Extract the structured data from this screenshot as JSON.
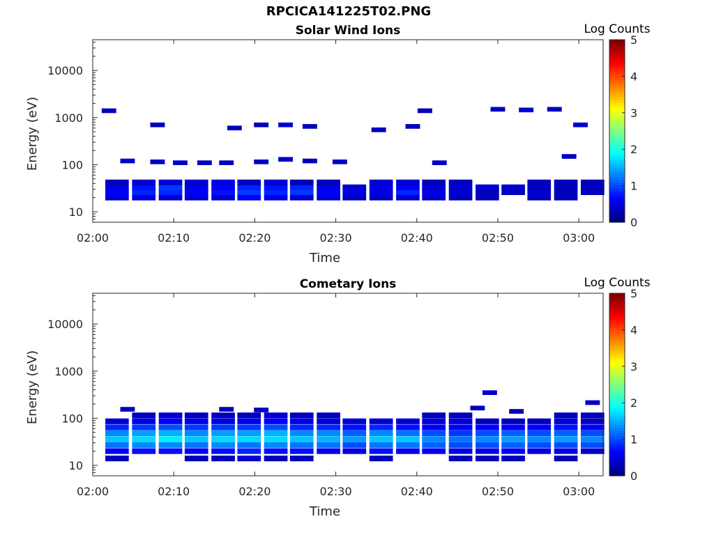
{
  "figure": {
    "title": "RPCICA141225T02.PNG"
  },
  "colorbar": {
    "label": "Log Counts",
    "ticks": [
      "0",
      "1",
      "2",
      "3",
      "4",
      "5"
    ],
    "range": [
      0,
      5
    ],
    "colormap": "jet"
  },
  "chart_data": [
    {
      "type": "heatmap",
      "title": "Solar Wind Ions",
      "xlabel": "Time",
      "ylabel": "Energy (eV)",
      "x_ticks": [
        "02:00",
        "02:10",
        "02:20",
        "02:30",
        "02:40",
        "02:50",
        "03:00"
      ],
      "y_ticks": [
        "10",
        "100",
        "1000",
        "10000"
      ],
      "y_scale": "log",
      "x_range_minutes": [
        0,
        63
      ],
      "y_range": [
        6,
        45000
      ],
      "z_label": "Log Counts",
      "z_range": [
        0,
        5
      ],
      "time_bins_minutes": [
        3.0,
        6.3,
        9.6,
        12.8,
        16.1,
        19.3,
        22.6,
        25.8,
        29.1,
        32.3,
        35.6,
        38.9,
        42.1,
        45.4,
        48.7,
        51.9,
        55.1,
        58.4,
        61.7
      ],
      "bands": [
        {
          "energy": 20,
          "values": [
            0.4,
            0.5,
            0.4,
            0.4,
            0.4,
            0.6,
            0.5,
            0.4,
            0.4,
            0.3,
            0.3,
            0.4,
            0.4,
            0.3,
            0.3,
            0,
            0.3,
            0.3,
            0
          ]
        },
        {
          "energy": 26,
          "values": [
            0.6,
            0.8,
            0.8,
            0.6,
            0.7,
            0.9,
            0.8,
            0.9,
            0.6,
            0.5,
            0.5,
            0.8,
            0.5,
            0.4,
            0.3,
            0.3,
            0.4,
            0.3,
            0.3
          ]
        },
        {
          "energy": 33,
          "values": [
            0.5,
            0.7,
            0.9,
            0.5,
            0.6,
            0.8,
            0.7,
            0.8,
            0.5,
            0.4,
            0.5,
            0.6,
            0.4,
            0.4,
            0.4,
            0.4,
            0.3,
            0.3,
            0.3
          ]
        },
        {
          "energy": 42,
          "values": [
            0.3,
            0.4,
            0.4,
            0.4,
            0.5,
            0.3,
            0.4,
            0.3,
            0.3,
            0,
            0.4,
            0.4,
            0.3,
            0.3,
            0,
            0,
            0.3,
            0.3,
            0.3
          ]
        }
      ],
      "sparse": [
        {
          "t": 2.0,
          "energy": 1400,
          "value": 0.3
        },
        {
          "t": 8.0,
          "energy": 700,
          "value": 0.3
        },
        {
          "t": 17.5,
          "energy": 600,
          "value": 0.3
        },
        {
          "t": 20.8,
          "energy": 700,
          "value": 0.3
        },
        {
          "t": 23.8,
          "energy": 700,
          "value": 0.4
        },
        {
          "t": 26.8,
          "energy": 650,
          "value": 0.3
        },
        {
          "t": 35.3,
          "energy": 550,
          "value": 0.3
        },
        {
          "t": 39.5,
          "energy": 650,
          "value": 0.3
        },
        {
          "t": 41.0,
          "energy": 1400,
          "value": 0.3
        },
        {
          "t": 50.0,
          "energy": 1500,
          "value": 0.3
        },
        {
          "t": 53.5,
          "energy": 1450,
          "value": 0.4
        },
        {
          "t": 57.0,
          "energy": 1500,
          "value": 0.3
        },
        {
          "t": 60.2,
          "energy": 700,
          "value": 0.4
        },
        {
          "t": 4.3,
          "energy": 120,
          "value": 0.4
        },
        {
          "t": 8.0,
          "energy": 115,
          "value": 0.3
        },
        {
          "t": 10.8,
          "energy": 110,
          "value": 0.4
        },
        {
          "t": 13.8,
          "energy": 110,
          "value": 0.3
        },
        {
          "t": 16.5,
          "energy": 110,
          "value": 0.3
        },
        {
          "t": 20.8,
          "energy": 115,
          "value": 0.3
        },
        {
          "t": 23.8,
          "energy": 130,
          "value": 0.4
        },
        {
          "t": 26.8,
          "energy": 120,
          "value": 0.3
        },
        {
          "t": 30.5,
          "energy": 115,
          "value": 0.3
        },
        {
          "t": 42.8,
          "energy": 110,
          "value": 0.3
        },
        {
          "t": 58.8,
          "energy": 150,
          "value": 0.3
        }
      ]
    },
    {
      "type": "heatmap",
      "title": "Cometary Ions",
      "xlabel": "Time",
      "ylabel": "Energy (eV)",
      "x_ticks": [
        "02:00",
        "02:10",
        "02:20",
        "02:30",
        "02:40",
        "02:50",
        "03:00"
      ],
      "y_ticks": [
        "10",
        "100",
        "1000",
        "10000"
      ],
      "y_scale": "log",
      "x_range_minutes": [
        0,
        63
      ],
      "y_range": [
        6,
        45000
      ],
      "z_label": "Log Counts",
      "z_range": [
        0,
        5
      ],
      "time_bins_minutes": [
        3.0,
        6.3,
        9.6,
        12.8,
        16.1,
        19.3,
        22.6,
        25.8,
        29.1,
        32.3,
        35.6,
        38.9,
        42.1,
        45.4,
        48.7,
        51.9,
        55.1,
        58.4,
        61.7
      ],
      "bands": [
        {
          "energy": 14,
          "values": [
            0.3,
            0,
            0,
            0.3,
            0.3,
            0.4,
            0.3,
            0.3,
            0,
            0,
            0.3,
            0,
            0,
            0.3,
            0.3,
            0.3,
            0,
            0.3,
            0
          ]
        },
        {
          "energy": 20,
          "values": [
            0.6,
            0.7,
            0.7,
            0.6,
            0.7,
            0.8,
            0.7,
            0.7,
            0.6,
            0.5,
            0.7,
            0.6,
            0.6,
            0.5,
            0.5,
            0.6,
            0.5,
            0.5,
            0.4
          ]
        },
        {
          "energy": 27,
          "values": [
            1.2,
            1.3,
            1.3,
            1.2,
            1.3,
            1.2,
            1.3,
            1.2,
            1.2,
            1.0,
            1.2,
            1.2,
            1.1,
            1.0,
            1.0,
            1.1,
            1.0,
            1.0,
            1.0
          ]
        },
        {
          "energy": 36,
          "values": [
            1.6,
            1.7,
            1.8,
            1.6,
            1.7,
            1.7,
            1.7,
            1.6,
            1.5,
            1.4,
            1.6,
            1.6,
            1.3,
            1.2,
            1.3,
            1.4,
            1.3,
            1.4,
            1.3
          ]
        },
        {
          "energy": 48,
          "values": [
            1.3,
            1.4,
            1.5,
            1.3,
            1.4,
            1.4,
            1.5,
            1.3,
            1.3,
            1.1,
            1.3,
            1.2,
            1.0,
            0.9,
            1.0,
            1.1,
            1.0,
            1.1,
            1.0
          ]
        },
        {
          "energy": 64,
          "values": [
            0.8,
            0.9,
            1.0,
            0.9,
            0.9,
            0.9,
            1.0,
            0.8,
            0.8,
            0.7,
            0.8,
            0.7,
            0.6,
            0.6,
            0.6,
            0.6,
            0.6,
            0.7,
            0.6
          ]
        },
        {
          "energy": 86,
          "values": [
            0.4,
            0.5,
            0.6,
            0.5,
            0.5,
            0.5,
            0.6,
            0.5,
            0.4,
            0.4,
            0.4,
            0.4,
            0.4,
            0.4,
            0.3,
            0.3,
            0.3,
            0.4,
            0.3
          ]
        },
        {
          "energy": 115,
          "values": [
            0,
            0.3,
            0.4,
            0.3,
            0.3,
            0.3,
            0.4,
            0.3,
            0.3,
            0,
            0,
            0,
            0.3,
            0.3,
            0,
            0,
            0,
            0.3,
            0.3
          ]
        }
      ],
      "sparse": [
        {
          "t": 4.3,
          "energy": 155,
          "value": 0.3
        },
        {
          "t": 16.5,
          "energy": 155,
          "value": 0.3
        },
        {
          "t": 20.8,
          "energy": 150,
          "value": 0.3
        },
        {
          "t": 47.5,
          "energy": 165,
          "value": 0.3
        },
        {
          "t": 49.0,
          "energy": 350,
          "value": 0.4
        },
        {
          "t": 52.3,
          "energy": 140,
          "value": 0.3
        },
        {
          "t": 61.7,
          "energy": 215,
          "value": 0.3
        }
      ]
    }
  ]
}
